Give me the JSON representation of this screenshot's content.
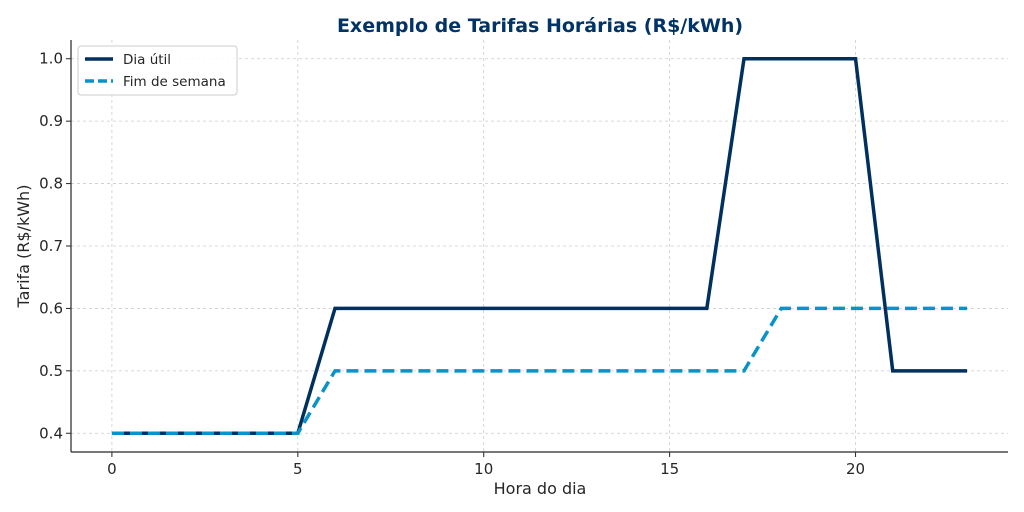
{
  "chart_data": {
    "type": "line",
    "title": "Exemplo de Tarifas Horárias (R$/kWh)",
    "xlabel": "Hora do dia",
    "ylabel": "Tarifa (R$/kWh)",
    "xlim": [
      -1.1,
      24.1
    ],
    "ylim": [
      0.37,
      1.03
    ],
    "xticks": [
      0,
      5,
      10,
      15,
      20
    ],
    "yticks": [
      0.4,
      0.5,
      0.6,
      0.7,
      0.8,
      0.9,
      1.0
    ],
    "ytick_labels": [
      "0.4",
      "0.5",
      "0.6",
      "0.7",
      "0.8",
      "0.9",
      "1.0"
    ],
    "grid": true,
    "legend_position": "top-left",
    "x": [
      0,
      1,
      2,
      3,
      4,
      5,
      6,
      7,
      8,
      9,
      10,
      11,
      12,
      13,
      14,
      15,
      16,
      17,
      18,
      19,
      20,
      21,
      22,
      23
    ],
    "series": [
      {
        "name": "Dia útil",
        "style": "solid",
        "color": "#00305e",
        "values": [
          0.4,
          0.4,
          0.4,
          0.4,
          0.4,
          0.4,
          0.6,
          0.6,
          0.6,
          0.6,
          0.6,
          0.6,
          0.6,
          0.6,
          0.6,
          0.6,
          0.6,
          1.0,
          1.0,
          1.0,
          1.0,
          0.5,
          0.5,
          0.5
        ]
      },
      {
        "name": "Fim de semana",
        "style": "dashed",
        "color": "#0894c8",
        "values": [
          0.4,
          0.4,
          0.4,
          0.4,
          0.4,
          0.4,
          0.5,
          0.5,
          0.5,
          0.5,
          0.5,
          0.5,
          0.5,
          0.5,
          0.5,
          0.5,
          0.5,
          0.5,
          0.6,
          0.6,
          0.6,
          0.6,
          0.6,
          0.6
        ]
      }
    ],
    "colors": {
      "title": "#003366",
      "axis": "#262626",
      "grid": "#cccccc",
      "legend_border": "#cccccc"
    }
  }
}
